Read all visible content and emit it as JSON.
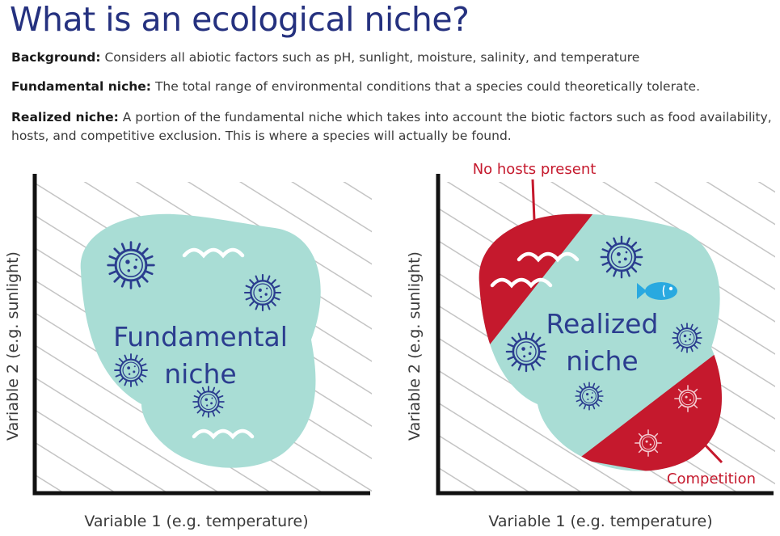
{
  "title": "What is an ecological niche?",
  "definitions": [
    {
      "term": "Background:",
      "text": "Considers all abiotic factors such as pH, sunlight, moisture, salinity, and temperature"
    },
    {
      "term": "Fundamental niche:",
      "text": "The total range of environmental conditions that a species could theoretically tolerate."
    },
    {
      "term": "Realized niche:",
      "text": "A portion of the fundamental niche which takes into account the biotic factors such as food availability, hosts, and competitive exclusion. This is where a species will actually be found."
    }
  ],
  "left_diagram": {
    "niche_label_line1": "Fundamental",
    "niche_label_line2": "niche",
    "x_axis_label": "Variable 1 (e.g. temperature)",
    "y_axis_label": "Variable 2 (e.g. sunlight)"
  },
  "right_diagram": {
    "niche_label_line1": "Realized",
    "niche_label_line2": "niche",
    "x_axis_label": "Variable 1 (e.g. temperature)",
    "y_axis_label": "Variable 2 (e.g. sunlight)",
    "callout_top": "No hosts present",
    "callout_bottom": "Competition"
  },
  "colors": {
    "title": "#25317f",
    "niche_fill": "#a9ddd5",
    "excluded_fill": "#c5192d",
    "callout_text": "#c5192d",
    "organism_stroke": "#2b3d8f",
    "fish": "#29a9e0",
    "hatch": "#c4c4c4"
  },
  "icons": [
    "microbe-icon",
    "wave-icon",
    "fish-icon"
  ]
}
